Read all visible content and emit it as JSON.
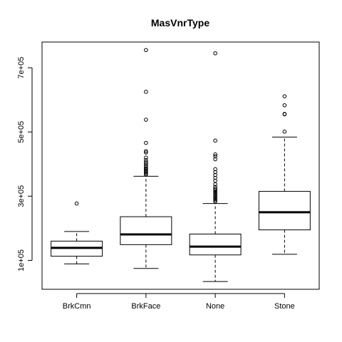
{
  "chart_data": {
    "type": "boxplot",
    "title": "MasVnrType",
    "xlabel": "",
    "ylabel": "",
    "ylim": [
      10000,
      780000
    ],
    "yticks": [
      {
        "value": 100000,
        "label": "1e+05"
      },
      {
        "value": 300000,
        "label": "3e+05"
      },
      {
        "value": 500000,
        "label": "5e+05"
      },
      {
        "value": 700000,
        "label": "7e+05"
      }
    ],
    "grid": false,
    "categories": [
      "BrkCmn",
      "BrkFace",
      "None",
      "Stone"
    ],
    "boxes": [
      {
        "category": "BrkCmn",
        "whisker_low": 89000,
        "q1": 113000,
        "median": 139000,
        "q3": 160000,
        "whisker_high": 190000,
        "outliers": [
          277000
        ]
      },
      {
        "category": "BrkFace",
        "whisker_low": 75000,
        "q1": 149000,
        "median": 181000,
        "q3": 236000,
        "whisker_high": 362000,
        "outliers": [
          367000,
          370000,
          374000,
          377000,
          380000,
          383000,
          386000,
          390000,
          395000,
          401000,
          406000,
          412000,
          420000,
          436000,
          440000,
          466000,
          538000,
          625000,
          755000
        ]
      },
      {
        "category": "None",
        "whisker_low": 34000,
        "q1": 117000,
        "median": 143000,
        "q3": 182000,
        "whisker_high": 277000,
        "outliers": [
          283000,
          287000,
          291000,
          295000,
          299000,
          303000,
          307000,
          311000,
          315000,
          319000,
          323000,
          329000,
          337000,
          348000,
          357000,
          366000,
          375000,
          384000,
          415000,
          424000,
          430000,
          473000,
          745000
        ]
      },
      {
        "category": "Stone",
        "whisker_low": 119000,
        "q1": 195000,
        "median": 250000,
        "q3": 315000,
        "whisker_high": 484000,
        "outliers": [
          501000,
          555000,
          556000,
          583000,
          611000
        ]
      }
    ]
  }
}
